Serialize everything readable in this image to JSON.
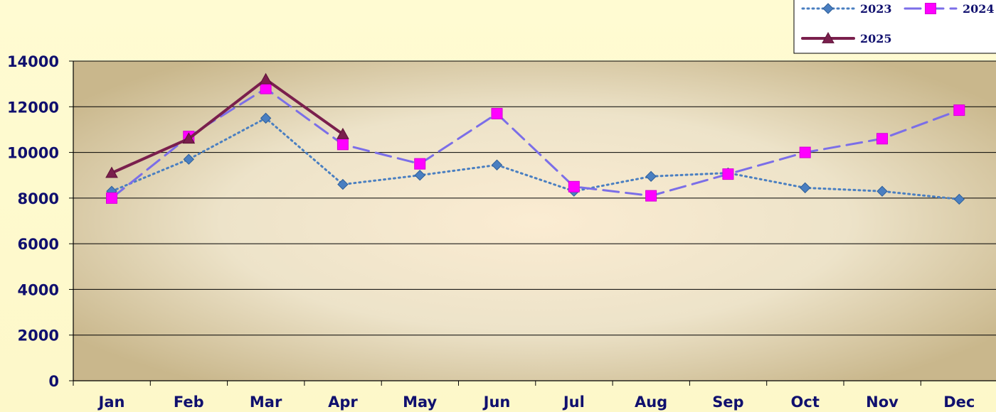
{
  "chart_data": {
    "type": "line",
    "title": "",
    "xlabel": "",
    "ylabel": "",
    "categories": [
      "Jan",
      "Feb",
      "Mar",
      "Apr",
      "May",
      "Jun",
      "Jul",
      "Aug",
      "Sep",
      "Oct",
      "Nov",
      "Dec"
    ],
    "ylim": [
      0,
      14000
    ],
    "yticks": [
      "0",
      "2000",
      "4000",
      "6000",
      "8000",
      "10000",
      "12000",
      "14000"
    ],
    "grid": true,
    "legend_position": "top-right",
    "series": [
      {
        "name": "2023",
        "color": "#4a7fc1",
        "line_style": "dotted",
        "marker": "diamond",
        "values": [
          8300,
          9700,
          11500,
          8600,
          9000,
          9450,
          8300,
          8950,
          9100,
          8450,
          8300,
          7950
        ]
      },
      {
        "name": "2024",
        "color": "#7b6ee8",
        "marker_color": "#ff00ff",
        "line_style": "dashed",
        "marker": "square",
        "values": [
          8000,
          10700,
          12800,
          10350,
          9500,
          11700,
          8500,
          8100,
          9050,
          10000,
          10600,
          11850
        ]
      },
      {
        "name": "2025",
        "color": "#7a1f4d",
        "line_style": "solid",
        "marker": "triangle",
        "values": [
          9100,
          10600,
          13200,
          10800,
          null,
          null,
          null,
          null,
          null,
          null,
          null,
          null
        ]
      }
    ]
  }
}
